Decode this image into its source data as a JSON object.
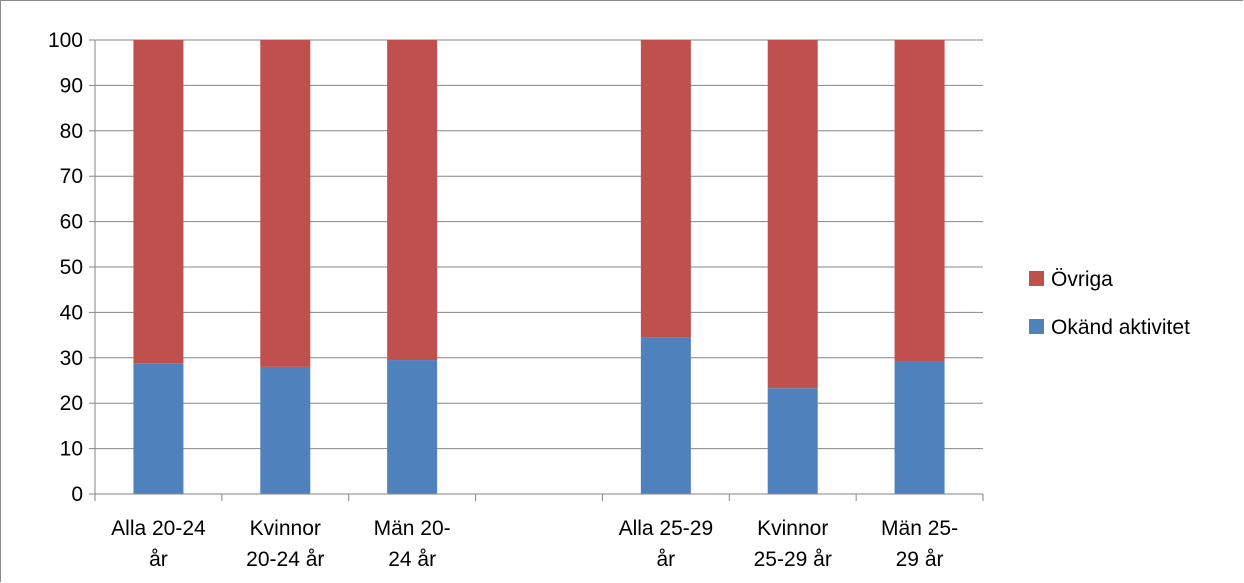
{
  "chart_data": {
    "type": "bar",
    "stacked": true,
    "categories": [
      [
        "Alla 20-24",
        "år"
      ],
      [
        "Kvinnor",
        "20-24 år"
      ],
      [
        "Män 20-",
        "24 år"
      ],
      [
        "",
        ""
      ],
      [
        "Alla 25-29",
        "år"
      ],
      [
        "Kvinnor",
        "25-29 år"
      ],
      [
        "Män 25-",
        "29 år"
      ]
    ],
    "series": [
      {
        "name": "Okänd aktivitet",
        "color": "#4f81bd",
        "values": [
          28.8,
          28.0,
          29.5,
          null,
          34.5,
          23.3,
          29.2
        ]
      },
      {
        "name": "Övriga",
        "color": "#c0504d",
        "values": [
          71.2,
          72.0,
          70.5,
          null,
          65.5,
          76.7,
          70.8
        ]
      }
    ],
    "ylim": [
      0,
      100
    ],
    "yticks": [
      0,
      10,
      20,
      30,
      40,
      50,
      60,
      70,
      80,
      90,
      100
    ],
    "grid": true,
    "legend": "right",
    "legend_order": [
      "Övriga",
      "Okänd aktivitet"
    ]
  }
}
